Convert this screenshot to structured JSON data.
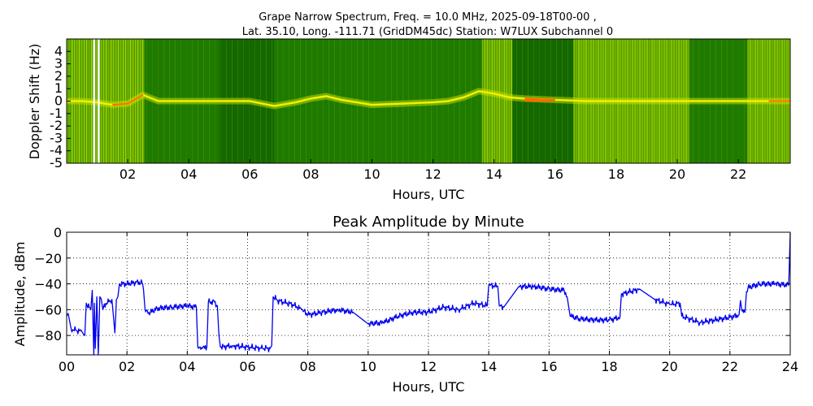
{
  "chart_data": [
    {
      "type": "heatmap",
      "title": "Grape Narrow Spectrum, Freq. = 10.0 MHz, 2025-09-18T00-00 ,",
      "subtitle": "Lat.  35.10, Long. -111.71 (GridDM45dc) Station: W7LUX Subchannel 0",
      "xlabel": "Hours, UTC",
      "ylabel": "Doppler Shift (Hz)",
      "xlim": [
        0,
        23.7
      ],
      "ylim": [
        -5,
        5
      ],
      "x_ticks": [
        2,
        4,
        6,
        8,
        10,
        12,
        14,
        16,
        18,
        20,
        22
      ],
      "x_tick_labels": [
        "02",
        "04",
        "06",
        "08",
        "10",
        "12",
        "14",
        "16",
        "18",
        "20",
        "22"
      ],
      "y_ticks": [
        4,
        3,
        2,
        1,
        0,
        -1,
        -2,
        -3,
        -4,
        -5
      ],
      "y_tick_labels": [
        "4",
        "3",
        "2",
        "1",
        "0",
        "-1",
        "-2",
        "-3",
        "-4",
        "-5"
      ],
      "colors": {
        "background": "#1f7a00",
        "mid": "#5aa800",
        "bright": "#d8e800",
        "peak": "#ff6a00",
        "gap": "#ffffff"
      },
      "bright_periods_hours": [
        [
          0.0,
          2.55
        ],
        [
          13.6,
          14.6
        ],
        [
          16.6,
          18.2
        ],
        [
          18.2,
          20.4
        ],
        [
          22.3,
          23.7
        ]
      ],
      "dark_periods_hours": [
        [
          5.0,
          6.8
        ],
        [
          14.6,
          16.6
        ]
      ],
      "gap_hours": [
        0.9,
        1.05
      ],
      "carrier_trace": {
        "x": [
          0.0,
          0.5,
          1.0,
          1.5,
          2.0,
          2.5,
          3.0,
          4.0,
          5.0,
          6.0,
          6.8,
          7.5,
          8.0,
          8.5,
          9.0,
          9.5,
          10.0,
          11.0,
          12.0,
          12.5,
          13.0,
          13.5,
          14.0,
          14.5,
          15.0,
          16.0,
          17.0,
          18.0,
          19.0,
          20.0,
          21.0,
          22.0,
          23.0,
          23.7
        ],
        "y": [
          0.0,
          0.0,
          -0.1,
          -0.3,
          -0.2,
          0.5,
          0.0,
          0.0,
          0.0,
          0.0,
          -0.4,
          -0.1,
          0.2,
          0.4,
          0.1,
          -0.1,
          -0.3,
          -0.2,
          -0.1,
          0.0,
          0.3,
          0.8,
          0.6,
          0.3,
          0.2,
          0.1,
          0.0,
          0.0,
          0.0,
          0.0,
          0.0,
          0.0,
          0.0,
          0.0
        ]
      }
    },
    {
      "type": "line",
      "title": "Peak Amplitude by Minute",
      "xlabel": "Hours, UTC",
      "ylabel": "Amplitude, dBm",
      "xlim": [
        0,
        24
      ],
      "ylim": [
        -95,
        0
      ],
      "grid": true,
      "line_color": "#0000ee",
      "x_ticks": [
        0,
        2,
        4,
        6,
        8,
        10,
        12,
        14,
        16,
        18,
        20,
        22,
        24
      ],
      "x_tick_labels": [
        "00",
        "02",
        "04",
        "06",
        "08",
        "10",
        "12",
        "14",
        "16",
        "18",
        "20",
        "22",
        "24"
      ],
      "y_ticks": [
        0,
        -20,
        -40,
        -60,
        -80
      ],
      "y_tick_labels": [
        "0",
        "−20",
        "−40",
        "−60",
        "−80"
      ],
      "series": [
        {
          "x": [
            0.0,
            0.05,
            0.15,
            0.3,
            0.5,
            0.6,
            0.65,
            0.8,
            0.85,
            0.9,
            0.92,
            0.95,
            1.0,
            1.05,
            1.1,
            1.15,
            1.2,
            1.3,
            1.4,
            1.5,
            1.6,
            1.65,
            1.7,
            1.75,
            2.0,
            2.3,
            2.5,
            2.55,
            2.6,
            2.7,
            3.0,
            3.5,
            4.0,
            4.3,
            4.35,
            4.4,
            4.5,
            4.65,
            4.7,
            4.9,
            5.0,
            5.05,
            5.1,
            5.5,
            6.0,
            6.5,
            6.75,
            6.8,
            6.85,
            7.0,
            7.5,
            7.8,
            8.0,
            8.5,
            9.0,
            9.5,
            10.0,
            10.5,
            11.0,
            11.5,
            12.0,
            12.5,
            13.0,
            13.5,
            13.95,
            14.0,
            14.3,
            14.35,
            14.5,
            15.0,
            15.5,
            16.0,
            16.5,
            16.6,
            16.7,
            17.0,
            17.5,
            18.0,
            18.35,
            18.4,
            19.0,
            19.5,
            20.0,
            20.35,
            20.4,
            21.0,
            21.5,
            22.0,
            22.3,
            22.35,
            22.4,
            22.5,
            22.55,
            22.6,
            23.0,
            23.5,
            23.95,
            24.0
          ],
          "y": [
            -65,
            -63,
            -75,
            -76,
            -77,
            -80,
            -55,
            -60,
            -45,
            -95,
            -55,
            -90,
            -50,
            -95,
            -50,
            -52,
            -60,
            -55,
            -54,
            -52,
            -78,
            -52,
            -50,
            -40,
            -40,
            -39,
            -39,
            -45,
            -60,
            -63,
            -59,
            -58,
            -57,
            -58,
            -89,
            -89,
            -90,
            -89,
            -54,
            -54,
            -57,
            -80,
            -89,
            -88,
            -89,
            -90,
            -90,
            -88,
            -50,
            -53,
            -56,
            -60,
            -64,
            -62,
            -60,
            -62,
            -71,
            -70,
            -65,
            -62,
            -62,
            -58,
            -60,
            -55,
            -57,
            -41,
            -42,
            -57,
            -58,
            -42,
            -42,
            -44,
            -45,
            -50,
            -65,
            -67,
            -68,
            -68,
            -66,
            -48,
            -44,
            -52,
            -56,
            -55,
            -65,
            -70,
            -68,
            -66,
            -64,
            -53,
            -61,
            -62,
            -46,
            -43,
            -40,
            -40,
            -41,
            -0.5
          ]
        }
      ]
    }
  ]
}
